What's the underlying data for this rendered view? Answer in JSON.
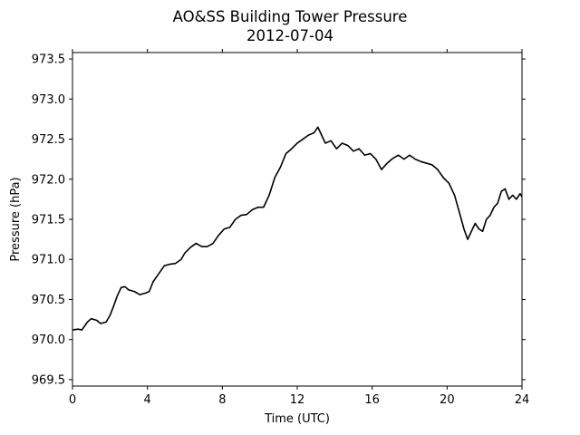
{
  "chart_data": {
    "type": "line",
    "title": "AO&SS Building Tower Pressure",
    "subtitle": "2012-07-04",
    "xlabel": "Time (UTC)",
    "ylabel": "Pressure (hPa)",
    "xlim": [
      0,
      24
    ],
    "ylim": [
      969.42,
      973.58
    ],
    "xticks": [
      0,
      4,
      8,
      12,
      16,
      20,
      24
    ],
    "xtick_labels": [
      "0",
      "4",
      "8",
      "12",
      "16",
      "20",
      "24"
    ],
    "yticks": [
      969.5,
      970.0,
      970.5,
      971.0,
      971.5,
      972.0,
      972.5,
      973.0,
      973.5
    ],
    "ytick_labels": [
      "969.5",
      "970.0",
      "970.5",
      "971.0",
      "971.5",
      "972.0",
      "972.5",
      "973.0",
      "973.5"
    ],
    "grid": false,
    "line_color": "#000000",
    "series": [
      {
        "x": [
          0,
          0.3,
          0.5,
          0.8,
          1.0,
          1.3,
          1.5,
          1.8,
          2.0,
          2.2,
          2.4,
          2.6,
          2.8,
          3.0,
          3.3,
          3.6,
          3.9,
          4.1,
          4.3,
          4.6,
          4.9,
          5.2,
          5.5,
          5.8,
          6.0,
          6.3,
          6.6,
          6.9,
          7.2,
          7.5,
          7.8,
          8.1,
          8.4,
          8.7,
          9.0,
          9.3,
          9.6,
          9.9,
          10.2,
          10.5,
          10.8,
          11.1,
          11.4,
          11.7,
          12.0,
          12.3,
          12.6,
          12.9,
          13.1,
          13.3,
          13.5,
          13.8,
          14.1,
          14.4,
          14.7,
          15.0,
          15.3,
          15.6,
          15.9,
          16.2,
          16.5,
          16.8,
          17.1,
          17.4,
          17.7,
          18.0,
          18.3,
          18.6,
          18.9,
          19.2,
          19.5,
          19.8,
          20.1,
          20.4,
          20.7,
          20.9,
          21.1,
          21.3,
          21.5,
          21.7,
          21.9,
          22.1,
          22.3,
          22.5,
          22.7,
          22.9,
          23.1,
          23.3,
          23.5,
          23.7,
          23.9,
          24.0
        ],
        "values": [
          970.12,
          970.13,
          970.12,
          970.22,
          970.26,
          970.24,
          970.2,
          970.22,
          970.3,
          970.42,
          970.55,
          970.65,
          970.66,
          970.62,
          970.6,
          970.56,
          970.58,
          970.6,
          970.72,
          970.82,
          970.92,
          970.94,
          970.95,
          971.0,
          971.08,
          971.15,
          971.2,
          971.16,
          971.16,
          971.2,
          971.3,
          971.38,
          971.4,
          971.5,
          971.55,
          971.56,
          971.62,
          971.65,
          971.65,
          971.8,
          972.02,
          972.15,
          972.32,
          972.38,
          972.45,
          972.5,
          972.55,
          972.58,
          972.65,
          972.55,
          972.45,
          972.48,
          972.38,
          972.45,
          972.42,
          972.35,
          972.38,
          972.3,
          972.32,
          972.25,
          972.12,
          972.2,
          972.26,
          972.3,
          972.25,
          972.3,
          972.25,
          972.22,
          972.2,
          972.18,
          972.12,
          972.02,
          971.95,
          971.8,
          971.55,
          971.38,
          971.25,
          971.35,
          971.45,
          971.38,
          971.35,
          971.5,
          971.55,
          971.65,
          971.7,
          971.85,
          971.88,
          971.75,
          971.8,
          971.75,
          971.82,
          971.78
        ]
      }
    ]
  }
}
